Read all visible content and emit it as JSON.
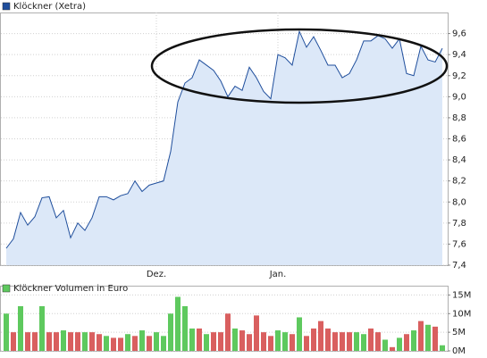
{
  "chart_data": [
    {
      "type": "area",
      "categories": [
        null,
        null,
        null,
        null,
        null,
        null,
        null,
        null,
        null,
        null,
        null,
        null,
        null,
        null,
        null,
        null,
        null,
        null,
        null,
        null,
        null,
        "Dez.",
        null,
        null,
        null,
        null,
        null,
        null,
        null,
        null,
        null,
        null,
        null,
        null,
        null,
        null,
        null,
        null,
        "Jan.",
        null,
        null,
        null,
        null,
        null,
        null,
        null,
        null,
        null,
        null,
        null,
        null,
        null,
        null,
        null,
        null,
        null,
        null,
        null,
        null,
        null,
        null,
        null
      ],
      "series": [
        {
          "name": "Klöckner (Xetra)",
          "color": "#1f4e9c",
          "fill": "#dce8f8",
          "values": [
            7.56,
            7.65,
            7.9,
            7.78,
            7.86,
            8.04,
            8.05,
            7.85,
            7.92,
            7.66,
            7.8,
            7.73,
            7.85,
            8.05,
            8.05,
            8.02,
            8.06,
            8.08,
            8.2,
            8.1,
            8.16,
            8.18,
            8.2,
            8.48,
            8.95,
            9.13,
            9.18,
            9.35,
            9.3,
            9.25,
            9.15,
            9.0,
            9.1,
            9.06,
            9.28,
            9.18,
            9.05,
            8.98,
            9.4,
            9.37,
            9.3,
            9.62,
            9.47,
            9.57,
            9.44,
            9.3,
            9.3,
            9.18,
            9.22,
            9.35,
            9.53,
            9.53,
            9.58,
            9.55,
            9.46,
            9.55,
            9.22,
            9.2,
            9.48,
            9.35,
            9.33,
            9.46
          ]
        }
      ],
      "ylim": [
        7.4,
        9.8
      ],
      "yticks": [
        {
          "value": 7.4,
          "label": "7,4"
        },
        {
          "value": 7.6,
          "label": "7,6"
        },
        {
          "value": 7.8,
          "label": "7,8"
        },
        {
          "value": 8.0,
          "label": "8,0"
        },
        {
          "value": 8.2,
          "label": "8,2"
        },
        {
          "value": 8.4,
          "label": "8,4"
        },
        {
          "value": 8.6,
          "label": "8,6"
        },
        {
          "value": 8.8,
          "label": "8,8"
        },
        {
          "value": 9.0,
          "label": "9,0"
        },
        {
          "value": 9.2,
          "label": "9,2"
        },
        {
          "value": 9.4,
          "label": "9,4"
        },
        {
          "value": 9.6,
          "label": "9,6"
        }
      ],
      "grid": true
    },
    {
      "type": "bar",
      "series": [
        {
          "name": "Klöckner Volumen in Euro",
          "color": "#5ec95e",
          "values": [
            10000000,
            5000000,
            12000000,
            5000000,
            5000000,
            12000000,
            5000000,
            5000000,
            5500000,
            5000000,
            5000000,
            5000000,
            5000000,
            4500000,
            4000000,
            3500000,
            3500000,
            4500000,
            4000000,
            5500000,
            4000000,
            5000000,
            4000000,
            10000000,
            14500000,
            12000000,
            6000000,
            6000000,
            4500000,
            5000000,
            5000000,
            10000000,
            6000000,
            5500000,
            4500000,
            9500000,
            5000000,
            4000000,
            5500000,
            5000000,
            4500000,
            9000000,
            4000000,
            6000000,
            8000000,
            6000000,
            5000000,
            5000000,
            5000000,
            5000000,
            4500000,
            6000000,
            5000000,
            3000000,
            1000000,
            3500000,
            4500000,
            5500000,
            8000000,
            7000000,
            6500000,
            1500000
          ],
          "colors": [
            "#5ec95e",
            "#d95f5f",
            "#5ec95e",
            "#d95f5f",
            "#d95f5f",
            "#5ec95e",
            "#d95f5f",
            "#d95f5f",
            "#5ec95e",
            "#d95f5f",
            "#d95f5f",
            "#5ec95e",
            "#d95f5f",
            "#d95f5f",
            "#5ec95e",
            "#d95f5f",
            "#d95f5f",
            "#5ec95e",
            "#d95f5f",
            "#5ec95e",
            "#d95f5f",
            "#5ec95e",
            "#5ec95e",
            "#5ec95e",
            "#5ec95e",
            "#5ec95e",
            "#5ec95e",
            "#d95f5f",
            "#5ec95e",
            "#d95f5f",
            "#d95f5f",
            "#d95f5f",
            "#5ec95e",
            "#d95f5f",
            "#d95f5f",
            "#d95f5f",
            "#d95f5f",
            "#d95f5f",
            "#5ec95e",
            "#5ec95e",
            "#d95f5f",
            "#5ec95e",
            "#d95f5f",
            "#d95f5f",
            "#d95f5f",
            "#d95f5f",
            "#d95f5f",
            "#d95f5f",
            "#d95f5f",
            "#5ec95e",
            "#5ec95e",
            "#d95f5f",
            "#d95f5f",
            "#5ec95e",
            "#d95f5f",
            "#5ec95e",
            "#d95f5f",
            "#5ec95e",
            "#d95f5f",
            "#5ec95e",
            "#d95f5f",
            "#5ec95e"
          ]
        }
      ],
      "ylim": [
        0,
        17500000
      ],
      "yticks": [
        {
          "value": 0,
          "label": "0M"
        },
        {
          "value": 5000000,
          "label": "5M"
        },
        {
          "value": 10000000,
          "label": "10M"
        },
        {
          "value": 15000000,
          "label": "15M"
        }
      ],
      "grid": true
    }
  ]
}
